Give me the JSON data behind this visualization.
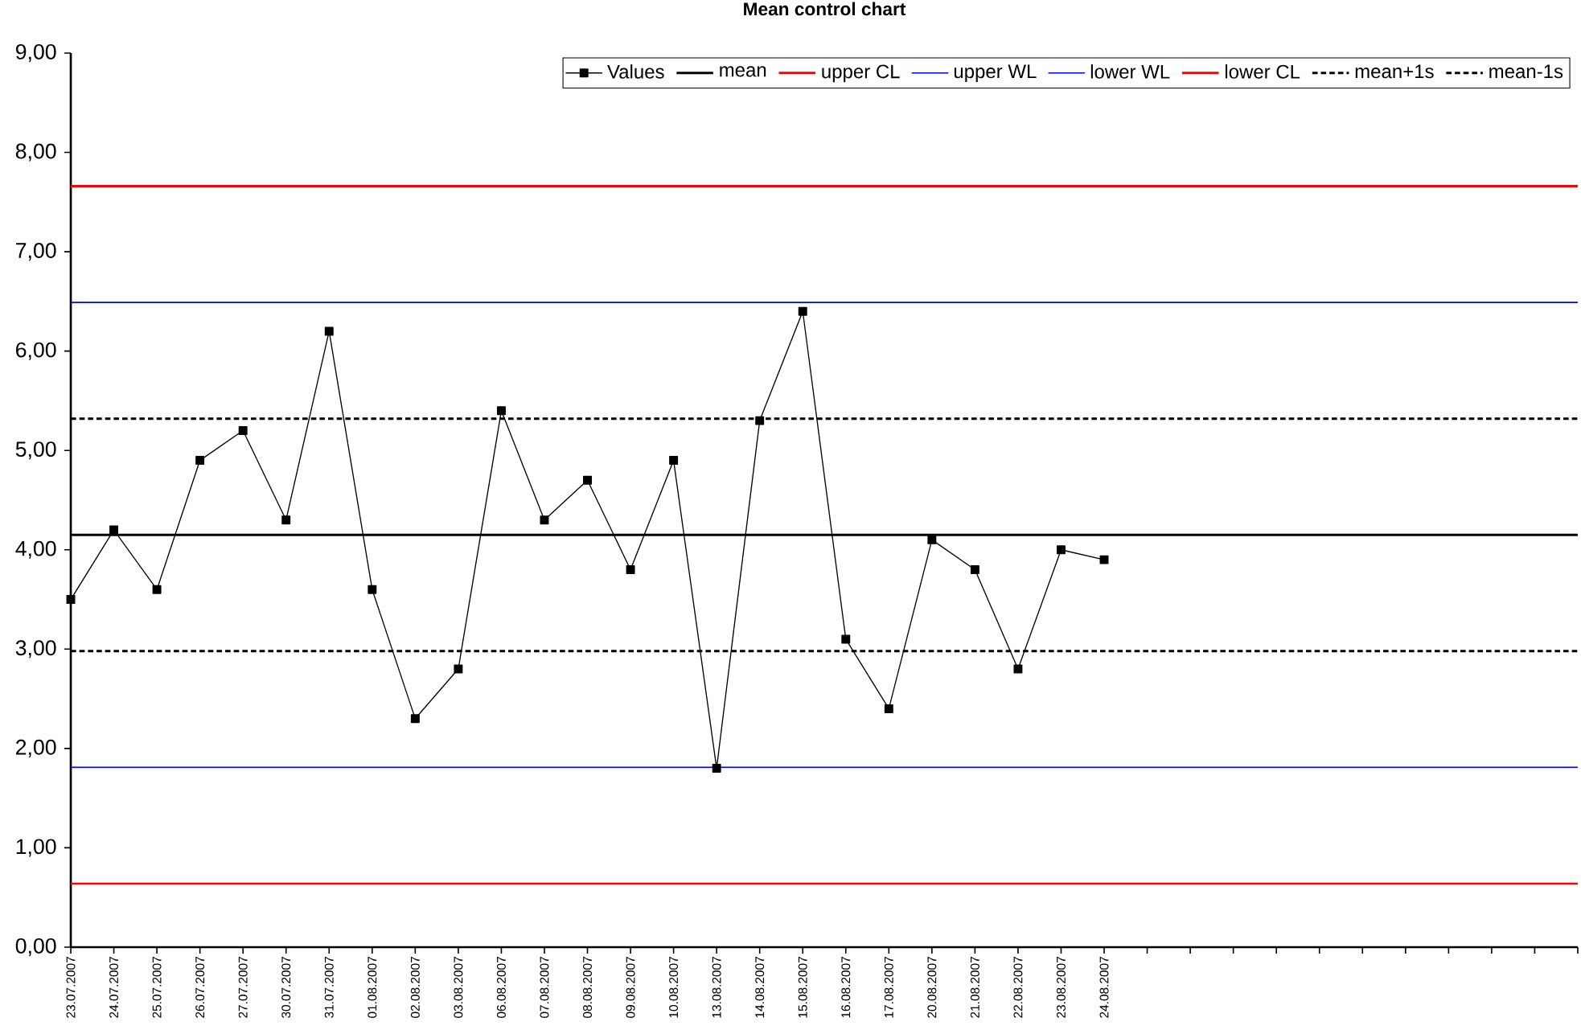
{
  "chart_data": {
    "type": "line",
    "title": "Mean control chart",
    "categories": [
      "23.07.2007",
      "24.07.2007",
      "25.07.2007",
      "26.07.2007",
      "27.07.2007",
      "30.07.2007",
      "31.07.2007",
      "01.08.2007",
      "02.08.2007",
      "03.08.2007",
      "06.08.2007",
      "07.08.2007",
      "08.08.2007",
      "09.08.2007",
      "10.08.2007",
      "13.08.2007",
      "14.08.2007",
      "15.08.2007",
      "16.08.2007",
      "17.08.2007",
      "20.08.2007",
      "21.08.2007",
      "22.08.2007",
      "23.08.2007",
      "24.08.2007",
      null,
      null,
      null,
      null,
      null,
      null,
      null,
      null,
      null,
      null,
      null
    ],
    "series": [
      {
        "name": "Values",
        "color": "#000000",
        "values": [
          3.5,
          4.2,
          3.6,
          4.9,
          5.2,
          4.3,
          6.2,
          3.6,
          2.3,
          2.8,
          5.4,
          4.3,
          4.7,
          3.8,
          4.9,
          1.8,
          5.3,
          6.4,
          3.1,
          2.4,
          4.1,
          3.8,
          2.8,
          4.0,
          3.9,
          null,
          null,
          null,
          null,
          null,
          null,
          null,
          null,
          null,
          null,
          null
        ]
      }
    ],
    "marker": "square",
    "line_style": "solid",
    "ylim": [
      0,
      9
    ],
    "yticks": [
      {
        "value": 0,
        "label": "0,00"
      },
      {
        "value": 1,
        "label": "1,00"
      },
      {
        "value": 2,
        "label": "2,00"
      },
      {
        "value": 3,
        "label": "3,00"
      },
      {
        "value": 4,
        "label": "4,00"
      },
      {
        "value": 5,
        "label": "5,00"
      },
      {
        "value": 6,
        "label": "6,00"
      },
      {
        "value": 7,
        "label": "7,00"
      },
      {
        "value": 8,
        "label": "8,00"
      },
      {
        "value": 9,
        "label": "9,00"
      }
    ],
    "ref_lines": [
      {
        "axis": "y",
        "value": 4.15,
        "label": "mean",
        "color": "#000000",
        "line_style": "solid"
      },
      {
        "axis": "y",
        "value": 7.66,
        "label": "upper CL",
        "color": "#ff0000",
        "line_style": "solid"
      },
      {
        "axis": "y",
        "value": 6.49,
        "label": "upper WL",
        "color": "#0000ff",
        "line_style": "solid"
      },
      {
        "axis": "y",
        "value": 1.81,
        "label": "lower WL",
        "color": "#0000ff",
        "line_style": "solid"
      },
      {
        "axis": "y",
        "value": 0.64,
        "label": "lower CL",
        "color": "#ff0000",
        "line_style": "solid"
      },
      {
        "axis": "y",
        "value": 5.32,
        "label": "mean+1s",
        "color": "#000000",
        "line_style": "dashed"
      },
      {
        "axis": "y",
        "value": 2.98,
        "label": "mean-1s",
        "color": "#000000",
        "line_style": "dashed"
      }
    ],
    "grid": false,
    "legend": "top right"
  }
}
